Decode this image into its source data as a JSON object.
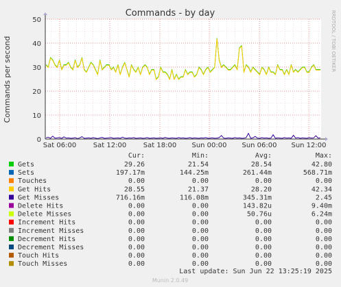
{
  "chart_data": {
    "type": "line",
    "title": "Commands - by day",
    "ylabel": "Commands per second",
    "side_label": "RRDTOOL / TOBI OETIKER",
    "ylim": [
      0,
      50
    ],
    "yticks": [
      0,
      10,
      20,
      30,
      40,
      50
    ],
    "x_ticks": [
      "Sat 06:00",
      "Sat 12:00",
      "Sat 18:00",
      "Sun 00:00",
      "Sun 06:00",
      "Sun 12:00"
    ],
    "series": [
      {
        "name": "Gets",
        "color": "#00cc00",
        "values": [
          31,
          30,
          34,
          33,
          31,
          30,
          33,
          29,
          31,
          31,
          32,
          30,
          29,
          33,
          30,
          31,
          34,
          29,
          28,
          30,
          32,
          31,
          29,
          27,
          33,
          29,
          30,
          31,
          31,
          29,
          30,
          28,
          31,
          27,
          30,
          32,
          29,
          26,
          31,
          29,
          28,
          30,
          27,
          30,
          31,
          30,
          27,
          29,
          29,
          25,
          26,
          30,
          28,
          28,
          27,
          25,
          29,
          25,
          27,
          25,
          26,
          26,
          29,
          27,
          28,
          28,
          26,
          27,
          30,
          29,
          27,
          29,
          30,
          28,
          29,
          30,
          42,
          33,
          30,
          31,
          30,
          29,
          29,
          30,
          31,
          29,
          38,
          39,
          28,
          31,
          30,
          28,
          30,
          29,
          28,
          27,
          30,
          29,
          27,
          30,
          28,
          28,
          27,
          31,
          29,
          29,
          27,
          29,
          27,
          31,
          28,
          29,
          28,
          29,
          30,
          30,
          28,
          28,
          30,
          31,
          29,
          29,
          29
        ]
      },
      {
        "name": "Get Hits",
        "color": "#ffcc00",
        "values": [
          30.8,
          29.8,
          33.8,
          32.8,
          30.8,
          29.8,
          32.8,
          28.8,
          30.8,
          30.8,
          31.8,
          29.8,
          28.8,
          32.8,
          29.8,
          30.8,
          33.8,
          28.8,
          27.8,
          29.8,
          31.8,
          30.8,
          28.8,
          26.8,
          32.8,
          28.8,
          29.8,
          30.8,
          30.8,
          28.8,
          29.8,
          27.8,
          30.8,
          26.8,
          29.8,
          31.8,
          28.8,
          25.8,
          30.8,
          28.8,
          27.8,
          29.8,
          26.8,
          29.8,
          30.8,
          29.8,
          26.8,
          28.8,
          28.8,
          24.8,
          25.8,
          29.8,
          27.8,
          27.8,
          26.8,
          24.8,
          28.8,
          24.8,
          26.8,
          24.8,
          25.8,
          25.8,
          28.8,
          26.8,
          27.8,
          27.8,
          25.8,
          26.8,
          29.8,
          28.8,
          26.8,
          28.8,
          29.8,
          27.8,
          28.8,
          29.8,
          41.8,
          32.8,
          29.8,
          30.8,
          29.8,
          28.8,
          28.8,
          29.8,
          30.8,
          28.8,
          37.8,
          38.8,
          27.8,
          30.8,
          29.8,
          27.8,
          29.8,
          28.8,
          27.8,
          26.8,
          29.8,
          28.8,
          26.8,
          29.8,
          27.8,
          27.8,
          26.8,
          30.8,
          28.8,
          28.8,
          26.8,
          28.8,
          26.8,
          30.8,
          27.8,
          28.8,
          27.8,
          28.8,
          29.8,
          29.8,
          27.8,
          27.8,
          29.8,
          30.8,
          28.8,
          28.8,
          28.8
        ]
      },
      {
        "name": "Get Misses",
        "color": "#330099",
        "values": [
          0.5,
          0.8,
          0.3,
          1.2,
          0.4,
          0.5,
          0.6,
          0.3,
          0.9,
          0.4,
          0.5,
          0.3,
          0.4,
          0.6,
          0.2,
          0.5,
          1.0,
          0.3,
          0.4,
          0.5,
          0.3,
          0.6,
          0.4,
          0.2,
          0.5,
          0.7,
          0.3,
          0.4,
          0.5,
          0.6,
          0.3,
          0.4,
          0.5,
          0.3,
          0.8,
          0.4,
          0.3,
          0.5,
          0.4,
          0.6,
          0.3,
          0.4,
          0.5,
          0.3,
          0.4,
          0.6,
          0.3,
          0.4,
          0.5,
          0.3,
          0.4,
          0.5,
          0.3,
          0.7,
          0.4,
          0.3,
          0.5,
          0.4,
          0.3,
          0.6,
          0.4,
          0.5,
          0.3,
          0.4,
          0.6,
          0.3,
          0.5,
          0.4,
          0.3,
          0.5,
          0.4,
          0.6,
          0.3,
          0.4,
          0.5,
          0.3,
          0.4,
          0.6,
          1.5,
          0.4,
          0.3,
          0.5,
          0.4,
          0.3,
          0.6,
          0.4,
          0.5,
          0.3,
          0.4,
          0.6,
          2.4,
          0.3,
          0.5,
          1.1,
          0.4,
          0.3,
          0.6,
          0.4,
          0.5,
          0.3,
          0.4,
          1.8,
          0.3,
          0.5,
          0.4,
          0.3,
          0.6,
          0.4,
          0.5,
          0.3,
          1.6,
          0.4,
          0.6,
          0.3,
          0.5,
          0.4,
          0.3,
          0.6,
          0.4,
          0.5,
          1.4,
          0.4,
          0.5
        ]
      }
    ]
  },
  "legend": {
    "headers": {
      "cur": "Cur:",
      "min": "Min:",
      "avg": "Avg:",
      "max": "Max:"
    },
    "rows": [
      {
        "name": "Gets",
        "color": "#00cc00",
        "cur": "29.26",
        "min": "21.54",
        "avg": "28.54",
        "max": "42.80"
      },
      {
        "name": "Sets",
        "color": "#0066b3",
        "cur": "197.17m",
        "min": "144.25m",
        "avg": "261.44m",
        "max": "568.71m"
      },
      {
        "name": "Touches",
        "color": "#ff8000",
        "cur": "0.00",
        "min": "0.00",
        "avg": "0.00",
        "max": "0.00"
      },
      {
        "name": "Get Hits",
        "color": "#ffcc00",
        "cur": "28.55",
        "min": "21.37",
        "avg": "28.20",
        "max": "42.34"
      },
      {
        "name": "Get Misses",
        "color": "#330099",
        "cur": "716.16m",
        "min": "116.08m",
        "avg": "345.31m",
        "max": "2.45"
      },
      {
        "name": "Delete Hits",
        "color": "#990099",
        "cur": "0.00",
        "min": "0.00",
        "avg": "143.82u",
        "max": "9.40m"
      },
      {
        "name": "Delete Misses",
        "color": "#ccff00",
        "cur": "0.00",
        "min": "0.00",
        "avg": "50.76u",
        "max": "6.24m"
      },
      {
        "name": "Increment Hits",
        "color": "#ff0000",
        "cur": "0.00",
        "min": "0.00",
        "avg": "0.00",
        "max": "0.00"
      },
      {
        "name": "Increment Misses",
        "color": "#808080",
        "cur": "0.00",
        "min": "0.00",
        "avg": "0.00",
        "max": "0.00"
      },
      {
        "name": "Decrement Hits",
        "color": "#008f00",
        "cur": "0.00",
        "min": "0.00",
        "avg": "0.00",
        "max": "0.00"
      },
      {
        "name": "Decrement Misses",
        "color": "#00487d",
        "cur": "0.00",
        "min": "0.00",
        "avg": "0.00",
        "max": "0.00"
      },
      {
        "name": "Touch Hits",
        "color": "#b35a00",
        "cur": "0.00",
        "min": "0.00",
        "avg": "0.00",
        "max": "0.00"
      },
      {
        "name": "Touch Misses",
        "color": "#b38f00",
        "cur": "0.00",
        "min": "0.00",
        "avg": "0.00",
        "max": "0.00"
      }
    ]
  },
  "footer": {
    "last_update": "Last update: Sun Jun 22 13:25:19 2025",
    "version": "Munin 2.0.49"
  }
}
